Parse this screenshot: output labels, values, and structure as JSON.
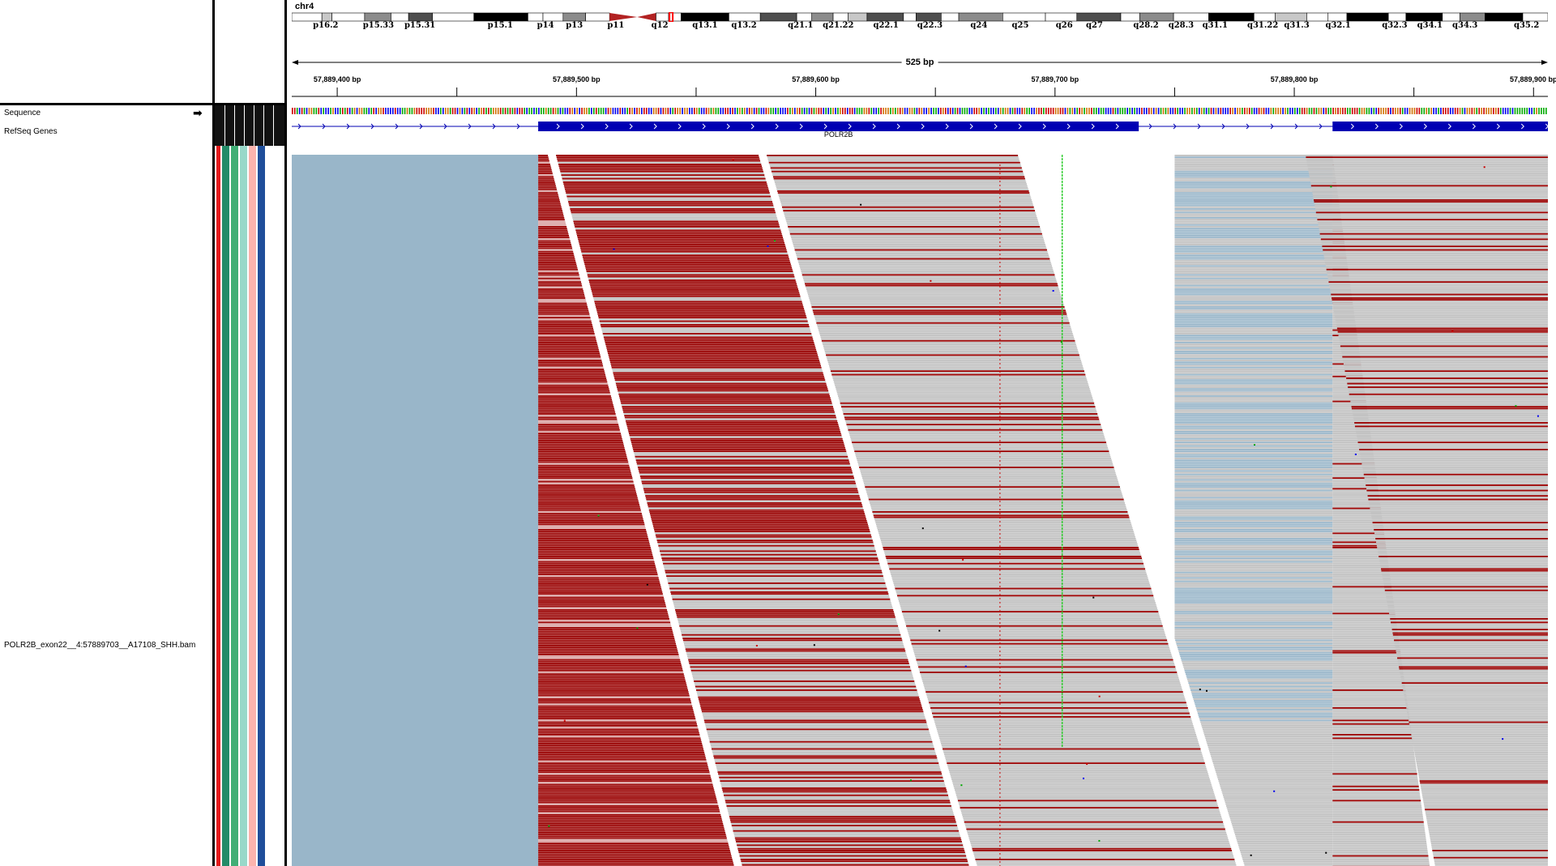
{
  "genome_view": {
    "chromosome": "chr4",
    "span_label": "525 bp",
    "ideogram_bands": [
      {
        "label": "p16.2",
        "start": 0,
        "end": 0.024,
        "stain": "white"
      },
      {
        "label": "",
        "start": 0.024,
        "end": 0.032,
        "stain": "gpos25"
      },
      {
        "label": "",
        "start": 0.032,
        "end": 0.058,
        "stain": "white"
      },
      {
        "label": "p15.33",
        "start": 0.058,
        "end": 0.079,
        "stain": "gpos50"
      },
      {
        "label": "",
        "start": 0.079,
        "end": 0.093,
        "stain": "white"
      },
      {
        "label": "p15.31",
        "start": 0.093,
        "end": 0.112,
        "stain": "gpos75"
      },
      {
        "label": "",
        "start": 0.112,
        "end": 0.145,
        "stain": "white"
      },
      {
        "label": "p15.1",
        "start": 0.145,
        "end": 0.188,
        "stain": "gpos100"
      },
      {
        "label": "",
        "start": 0.188,
        "end": 0.2,
        "stain": "white"
      },
      {
        "label": "p14",
        "start": 0.2,
        "end": 0.216,
        "stain": "white"
      },
      {
        "label": "p13",
        "start": 0.216,
        "end": 0.234,
        "stain": "gpos50"
      },
      {
        "label": "",
        "start": 0.234,
        "end": 0.253,
        "stain": "white"
      },
      {
        "label": "p11",
        "start": 0.253,
        "end": 0.275,
        "stain": "acen-p"
      },
      {
        "label": "q12",
        "start": 0.275,
        "end": 0.3,
        "stain": "acen-q"
      },
      {
        "label": "",
        "start": 0.3,
        "end": 0.31,
        "stain": "white"
      },
      {
        "label": "q13.1",
        "start": 0.31,
        "end": 0.348,
        "stain": "gpos100"
      },
      {
        "label": "q13.2",
        "start": 0.348,
        "end": 0.373,
        "stain": "white"
      },
      {
        "label": "",
        "start": 0.373,
        "end": 0.402,
        "stain": "gpos75"
      },
      {
        "label": "q21.1",
        "start": 0.402,
        "end": 0.414,
        "stain": "white"
      },
      {
        "label": "",
        "start": 0.414,
        "end": 0.431,
        "stain": "gpos50"
      },
      {
        "label": "q21.22",
        "start": 0.431,
        "end": 0.443,
        "stain": "white"
      },
      {
        "label": "",
        "start": 0.443,
        "end": 0.458,
        "stain": "gpos25"
      },
      {
        "label": "q22.1",
        "start": 0.458,
        "end": 0.487,
        "stain": "gpos75"
      },
      {
        "label": "",
        "start": 0.487,
        "end": 0.497,
        "stain": "white"
      },
      {
        "label": "q22.3",
        "start": 0.497,
        "end": 0.517,
        "stain": "gpos75"
      },
      {
        "label": "",
        "start": 0.517,
        "end": 0.531,
        "stain": "white"
      },
      {
        "label": "q24",
        "start": 0.531,
        "end": 0.566,
        "stain": "gpos50"
      },
      {
        "label": "",
        "start": 0.566,
        "end": 0.6,
        "stain": "white"
      },
      {
        "label": "q25",
        "start": 0.6,
        "end": 0.625,
        "stain": "white"
      },
      {
        "label": "q26",
        "start": 0.625,
        "end": 0.66,
        "stain": "gpos75"
      },
      {
        "label": "q27",
        "start": 0.66,
        "end": 0.675,
        "stain": "white"
      },
      {
        "label": "",
        "start": 0.675,
        "end": 0.702,
        "stain": "gpos50"
      },
      {
        "label": "q28.2",
        "start": 0.702,
        "end": 0.73,
        "stain": "white"
      },
      {
        "label": "q28.3",
        "start": 0.73,
        "end": 0.766,
        "stain": "gpos100"
      },
      {
        "label": "q31.1",
        "start": 0.766,
        "end": 0.783,
        "stain": "white"
      },
      {
        "label": "q31.22",
        "start": 0.783,
        "end": 0.808,
        "stain": "gpos25"
      },
      {
        "label": "",
        "start": 0.808,
        "end": 0.825,
        "stain": "white"
      },
      {
        "label": "q31.3",
        "start": 0.825,
        "end": 0.84,
        "stain": "white"
      },
      {
        "label": "q32.1",
        "start": 0.84,
        "end": 0.873,
        "stain": "gpos100"
      },
      {
        "label": "",
        "start": 0.873,
        "end": 0.887,
        "stain": "white"
      },
      {
        "label": "q32.3",
        "start": 0.887,
        "end": 0.916,
        "stain": "gpos100"
      },
      {
        "label": "",
        "start": 0.916,
        "end": 0.93,
        "stain": "white"
      },
      {
        "label": "q34.1",
        "start": 0.93,
        "end": 0.95,
        "stain": "gpos50"
      },
      {
        "label": "q34.3",
        "start": 0.95,
        "end": 0.98,
        "stain": "gpos100"
      },
      {
        "label": "q35.2",
        "start": 0.98,
        "end": 1,
        "stain": "white"
      }
    ],
    "band_label_positions": [
      {
        "label": "p16.2",
        "at": 0.027
      },
      {
        "label": "p15.33",
        "at": 0.069
      },
      {
        "label": "p15.31",
        "at": 0.102
      },
      {
        "label": "p15.1",
        "at": 0.166
      },
      {
        "label": "p14",
        "at": 0.202
      },
      {
        "label": "p13",
        "at": 0.225
      },
      {
        "label": "p11",
        "at": 0.258
      },
      {
        "label": "q12",
        "at": 0.293
      },
      {
        "label": "q13.1",
        "at": 0.329
      },
      {
        "label": "q13.2",
        "at": 0.36
      },
      {
        "label": "q21.1",
        "at": 0.405
      },
      {
        "label": "q21.22",
        "at": 0.435
      },
      {
        "label": "q22.1",
        "at": 0.473
      },
      {
        "label": "q22.3",
        "at": 0.508
      },
      {
        "label": "q24",
        "at": 0.547
      },
      {
        "label": "q25",
        "at": 0.58
      },
      {
        "label": "q26",
        "at": 0.615
      },
      {
        "label": "q27",
        "at": 0.639
      },
      {
        "label": "q28.2",
        "at": 0.68
      },
      {
        "label": "q28.3",
        "at": 0.708
      },
      {
        "label": "q31.1",
        "at": 0.735
      },
      {
        "label": "q31.22",
        "at": 0.773
      },
      {
        "label": "q31.3",
        "at": 0.8
      },
      {
        "label": "q32.1",
        "at": 0.833
      },
      {
        "label": "q32.3",
        "at": 0.878
      },
      {
        "label": "q34.1",
        "at": 0.906
      },
      {
        "label": "q34.3",
        "at": 0.934
      },
      {
        "label": "q35.2",
        "at": 0.983
      }
    ],
    "current_locus_fraction": 0.302,
    "view_start_bp": 57889381,
    "view_end_bp": 57889906,
    "ruler_ticks": [
      {
        "bp": 57889400,
        "label": "57,889,400 bp",
        "labeled": true
      },
      {
        "bp": 57889450,
        "label": "",
        "labeled": false
      },
      {
        "bp": 57889500,
        "label": "57,889,500 bp",
        "labeled": true
      },
      {
        "bp": 57889550,
        "label": "",
        "labeled": false
      },
      {
        "bp": 57889600,
        "label": "57,889,600 bp",
        "labeled": true
      },
      {
        "bp": 57889650,
        "label": "",
        "labeled": false
      },
      {
        "bp": 57889700,
        "label": "57,889,700 bp",
        "labeled": true
      },
      {
        "bp": 57889750,
        "label": "",
        "labeled": false
      },
      {
        "bp": 57889800,
        "label": "57,889,800 bp",
        "labeled": true
      },
      {
        "bp": 57889850,
        "label": "",
        "labeled": false
      },
      {
        "bp": 57889900,
        "label": "57,889,900 bp",
        "labeled": true
      }
    ]
  },
  "tracks": {
    "sequence": {
      "name": "Sequence",
      "strand_arrow": "➡"
    },
    "refseq": {
      "name": "RefSeq Genes",
      "gene": "POLR2B",
      "exons": [
        {
          "start_bp": 57889484,
          "end_bp": 57889735
        },
        {
          "start_bp": 57889816,
          "end_bp": 57889906
        }
      ]
    },
    "alignment": {
      "name": "POLR2B_exon22__4:57889703__A17108_SHH.bam"
    }
  },
  "attribute_colors": [
    "#e31a1c",
    "#238b68",
    "#41ae76",
    "#99d8c9",
    "#fbb4ae",
    "#1f4e9a",
    "#ffffff"
  ],
  "colors": {
    "read_gray": "#c0c0c0",
    "read_red": "#990000",
    "read_blue": "#99b6c9",
    "mismatch_green": "#2ecc2e",
    "mismatch_red": "#cc0000",
    "gene_blue": "#0000b3"
  }
}
